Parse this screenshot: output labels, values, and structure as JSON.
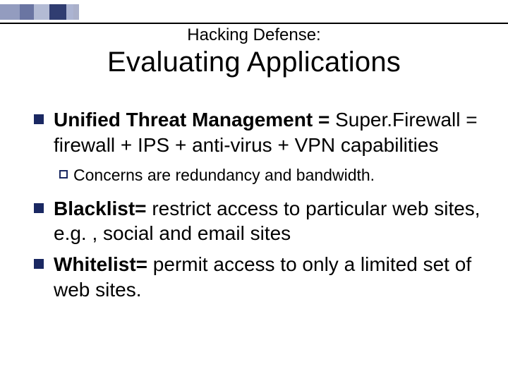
{
  "decor": {
    "rule_color": "#000000",
    "squares_palette": [
      "#3a4a8a",
      "#2b3a7a",
      "#808db8",
      "#1a2862",
      "#5a6aa5",
      "#2b3a7a"
    ]
  },
  "title": {
    "small": "Hacking Defense:",
    "large": "Evaluating Applications",
    "small_fontsize": 24,
    "large_fontsize": 40
  },
  "bullets": [
    {
      "level": 1,
      "bold_prefix": "Unified Threat Management = ",
      "rest": "Super.Firewall = firewall + IPS + anti-virus + VPN capabilities"
    },
    {
      "level": 2,
      "bold_prefix": "",
      "rest": "Concerns are redundancy and bandwidth."
    },
    {
      "level": 1,
      "bold_prefix": "Blacklist= ",
      "rest": "restrict access to particular web sites, e.g. , social and email sites"
    },
    {
      "level": 1,
      "bold_prefix": "Whitelist=  ",
      "rest": "permit access to only a limited set of web sites."
    }
  ],
  "style": {
    "body_fontsize": 28,
    "sub_fontsize": 23,
    "bullet_color": "#1a2862",
    "text_color": "#000000",
    "background_color": "#ffffff"
  }
}
